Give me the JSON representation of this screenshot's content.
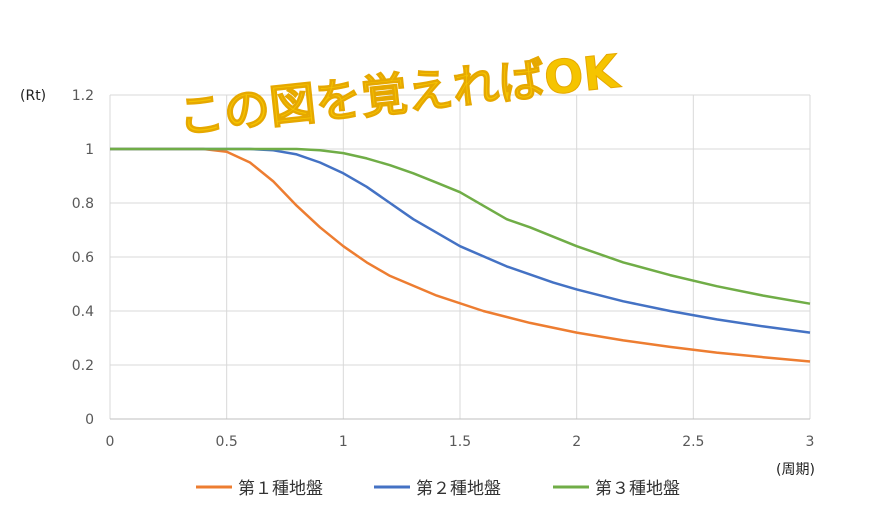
{
  "overlay_text": "この図を覚えればOK",
  "chart_data": {
    "type": "line",
    "ylabel": "(Rt)",
    "xlabel": "(周期)",
    "xlim": [
      0,
      3
    ],
    "ylim": [
      0,
      1.2
    ],
    "x_ticks": [
      "0",
      "0.5",
      "1",
      "1.5",
      "2",
      "2.5",
      "3"
    ],
    "y_ticks": [
      "0",
      "0.2",
      "0.4",
      "0.6",
      "0.8",
      "1",
      "1.2"
    ],
    "grid": true,
    "legend_position": "bottom",
    "series": [
      {
        "name": "第１種地盤",
        "color": "#ed7d31",
        "points": [
          [
            0,
            1
          ],
          [
            0.4,
            1
          ],
          [
            0.5,
            0.99
          ],
          [
            0.6,
            0.95
          ],
          [
            0.7,
            0.88
          ],
          [
            0.8,
            0.79
          ],
          [
            0.9,
            0.71
          ],
          [
            1.0,
            0.64
          ],
          [
            1.1,
            0.58
          ],
          [
            1.2,
            0.53
          ],
          [
            1.4,
            0.457
          ],
          [
            1.6,
            0.4
          ],
          [
            1.8,
            0.356
          ],
          [
            2.0,
            0.32
          ],
          [
            2.2,
            0.291
          ],
          [
            2.4,
            0.267
          ],
          [
            2.6,
            0.246
          ],
          [
            2.8,
            0.229
          ],
          [
            3.0,
            0.213
          ]
        ]
      },
      {
        "name": "第２種地盤",
        "color": "#4472c4",
        "points": [
          [
            0,
            1
          ],
          [
            0.6,
            1
          ],
          [
            0.7,
            0.995
          ],
          [
            0.8,
            0.98
          ],
          [
            0.9,
            0.95
          ],
          [
            1.0,
            0.91
          ],
          [
            1.1,
            0.86
          ],
          [
            1.2,
            0.8
          ],
          [
            1.3,
            0.74
          ],
          [
            1.4,
            0.69
          ],
          [
            1.5,
            0.64
          ],
          [
            1.7,
            0.565
          ],
          [
            1.9,
            0.505
          ],
          [
            2.0,
            0.48
          ],
          [
            2.2,
            0.436
          ],
          [
            2.4,
            0.4
          ],
          [
            2.6,
            0.369
          ],
          [
            2.8,
            0.343
          ],
          [
            3.0,
            0.32
          ]
        ]
      },
      {
        "name": "第３種地盤",
        "color": "#70ad47",
        "points": [
          [
            0,
            1
          ],
          [
            0.8,
            1
          ],
          [
            0.9,
            0.995
          ],
          [
            1.0,
            0.985
          ],
          [
            1.1,
            0.965
          ],
          [
            1.2,
            0.94
          ],
          [
            1.3,
            0.91
          ],
          [
            1.4,
            0.875
          ],
          [
            1.5,
            0.84
          ],
          [
            1.6,
            0.79
          ],
          [
            1.7,
            0.74
          ],
          [
            1.8,
            0.71
          ],
          [
            2.0,
            0.64
          ],
          [
            2.2,
            0.58
          ],
          [
            2.4,
            0.533
          ],
          [
            2.6,
            0.492
          ],
          [
            2.8,
            0.457
          ],
          [
            3.0,
            0.427
          ]
        ]
      }
    ]
  }
}
